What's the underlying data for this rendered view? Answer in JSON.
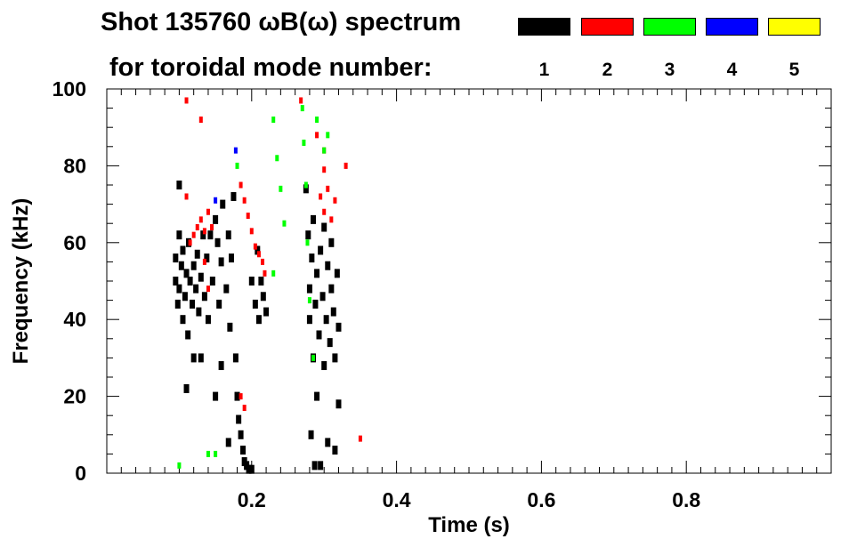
{
  "title": {
    "line1": "Shot 135760 ωB(ω) spectrum",
    "line2": "for toroidal mode number:"
  },
  "legend": [
    {
      "label": "1",
      "color": "#000000"
    },
    {
      "label": "2",
      "color": "#ff0000"
    },
    {
      "label": "3",
      "color": "#00ff00"
    },
    {
      "label": "4",
      "color": "#0000ff"
    },
    {
      "label": "5",
      "color": "#ffff00"
    }
  ],
  "chart_data": {
    "type": "heatmap",
    "title": "Shot 135760 ωB(ω) spectrum",
    "xlabel": "Time (s)",
    "ylabel": "Frequency (kHz)",
    "xlim": [
      0.0,
      1.0
    ],
    "ylim": [
      0,
      100
    ],
    "xticks": [
      0.2,
      0.4,
      0.6,
      0.8
    ],
    "xtick_labels": [
      "0.2",
      "0.4",
      "0.6",
      "0.8"
    ],
    "yticks": [
      0,
      20,
      40,
      60,
      80,
      100
    ],
    "ytick_labels": [
      "0",
      "20",
      "40",
      "60",
      "80",
      "100"
    ],
    "grid": false,
    "legend_position": "top-right",
    "series": [
      {
        "name": "1",
        "color": "#000000",
        "points": [
          [
            0.095,
            50
          ],
          [
            0.095,
            56
          ],
          [
            0.098,
            44
          ],
          [
            0.1,
            62
          ],
          [
            0.1,
            48
          ],
          [
            0.103,
            54
          ],
          [
            0.105,
            40
          ],
          [
            0.105,
            58
          ],
          [
            0.108,
            46
          ],
          [
            0.11,
            52
          ],
          [
            0.112,
            36
          ],
          [
            0.113,
            60
          ],
          [
            0.115,
            50
          ],
          [
            0.118,
            44
          ],
          [
            0.12,
            54
          ],
          [
            0.12,
            30
          ],
          [
            0.123,
            48
          ],
          [
            0.125,
            57
          ],
          [
            0.127,
            42
          ],
          [
            0.13,
            51
          ],
          [
            0.133,
            62
          ],
          [
            0.135,
            46
          ],
          [
            0.138,
            56
          ],
          [
            0.14,
            40
          ],
          [
            0.143,
            62
          ],
          [
            0.146,
            50
          ],
          [
            0.15,
            66
          ],
          [
            0.153,
            60
          ],
          [
            0.155,
            44
          ],
          [
            0.158,
            55
          ],
          [
            0.16,
            70
          ],
          [
            0.165,
            48
          ],
          [
            0.168,
            62
          ],
          [
            0.17,
            38
          ],
          [
            0.172,
            56
          ],
          [
            0.175,
            72
          ],
          [
            0.178,
            30
          ],
          [
            0.18,
            20
          ],
          [
            0.182,
            14
          ],
          [
            0.185,
            10
          ],
          [
            0.188,
            6
          ],
          [
            0.19,
            3
          ],
          [
            0.193,
            2
          ],
          [
            0.196,
            1
          ],
          [
            0.2,
            1
          ],
          [
            0.2,
            50
          ],
          [
            0.205,
            44
          ],
          [
            0.208,
            58
          ],
          [
            0.21,
            40
          ],
          [
            0.213,
            50
          ],
          [
            0.216,
            46
          ],
          [
            0.22,
            42
          ],
          [
            0.168,
            8
          ],
          [
            0.158,
            28
          ],
          [
            0.15,
            20
          ],
          [
            0.13,
            30
          ],
          [
            0.11,
            22
          ],
          [
            0.1,
            75
          ],
          [
            0.278,
            62
          ],
          [
            0.28,
            48
          ],
          [
            0.28,
            40
          ],
          [
            0.283,
            56
          ],
          [
            0.285,
            30
          ],
          [
            0.285,
            66
          ],
          [
            0.288,
            44
          ],
          [
            0.29,
            52
          ],
          [
            0.29,
            20
          ],
          [
            0.293,
            36
          ],
          [
            0.295,
            58
          ],
          [
            0.298,
            46
          ],
          [
            0.3,
            28
          ],
          [
            0.3,
            64
          ],
          [
            0.303,
            40
          ],
          [
            0.305,
            54
          ],
          [
            0.308,
            34
          ],
          [
            0.31,
            48
          ],
          [
            0.31,
            60
          ],
          [
            0.313,
            42
          ],
          [
            0.315,
            30
          ],
          [
            0.318,
            52
          ],
          [
            0.32,
            38
          ],
          [
            0.32,
            18
          ],
          [
            0.287,
            2
          ],
          [
            0.295,
            2
          ],
          [
            0.305,
            8
          ],
          [
            0.282,
            10
          ],
          [
            0.315,
            6
          ],
          [
            0.275,
            74
          ]
        ]
      },
      {
        "name": "2",
        "color": "#ff0000",
        "points": [
          [
            0.115,
            60
          ],
          [
            0.12,
            62
          ],
          [
            0.125,
            64
          ],
          [
            0.13,
            66
          ],
          [
            0.135,
            63
          ],
          [
            0.14,
            68
          ],
          [
            0.145,
            64
          ],
          [
            0.135,
            55
          ],
          [
            0.14,
            48
          ],
          [
            0.11,
            72
          ],
          [
            0.11,
            97
          ],
          [
            0.13,
            92
          ],
          [
            0.185,
            75
          ],
          [
            0.19,
            71
          ],
          [
            0.195,
            67
          ],
          [
            0.2,
            63
          ],
          [
            0.205,
            59
          ],
          [
            0.21,
            57
          ],
          [
            0.215,
            55
          ],
          [
            0.218,
            52
          ],
          [
            0.295,
            72
          ],
          [
            0.3,
            68
          ],
          [
            0.305,
            74
          ],
          [
            0.31,
            66
          ],
          [
            0.3,
            79
          ],
          [
            0.315,
            71
          ],
          [
            0.29,
            88
          ],
          [
            0.3,
            84
          ],
          [
            0.185,
            20
          ],
          [
            0.19,
            17
          ],
          [
            0.268,
            97
          ],
          [
            0.33,
            80
          ],
          [
            0.35,
            9
          ]
        ]
      },
      {
        "name": "3",
        "color": "#00ff00",
        "points": [
          [
            0.27,
            95
          ],
          [
            0.272,
            86
          ],
          [
            0.275,
            75
          ],
          [
            0.277,
            60
          ],
          [
            0.28,
            45
          ],
          [
            0.285,
            30
          ],
          [
            0.29,
            92
          ],
          [
            0.3,
            84
          ],
          [
            0.305,
            88
          ],
          [
            0.23,
            92
          ],
          [
            0.235,
            82
          ],
          [
            0.24,
            74
          ],
          [
            0.245,
            65
          ],
          [
            0.23,
            52
          ],
          [
            0.18,
            80
          ],
          [
            0.14,
            5
          ],
          [
            0.15,
            5
          ],
          [
            0.1,
            2
          ]
        ]
      },
      {
        "name": "4",
        "color": "#0000ff",
        "points": [
          [
            0.15,
            71
          ],
          [
            0.178,
            84
          ]
        ]
      },
      {
        "name": "5",
        "color": "#ffff00",
        "points": []
      }
    ]
  }
}
